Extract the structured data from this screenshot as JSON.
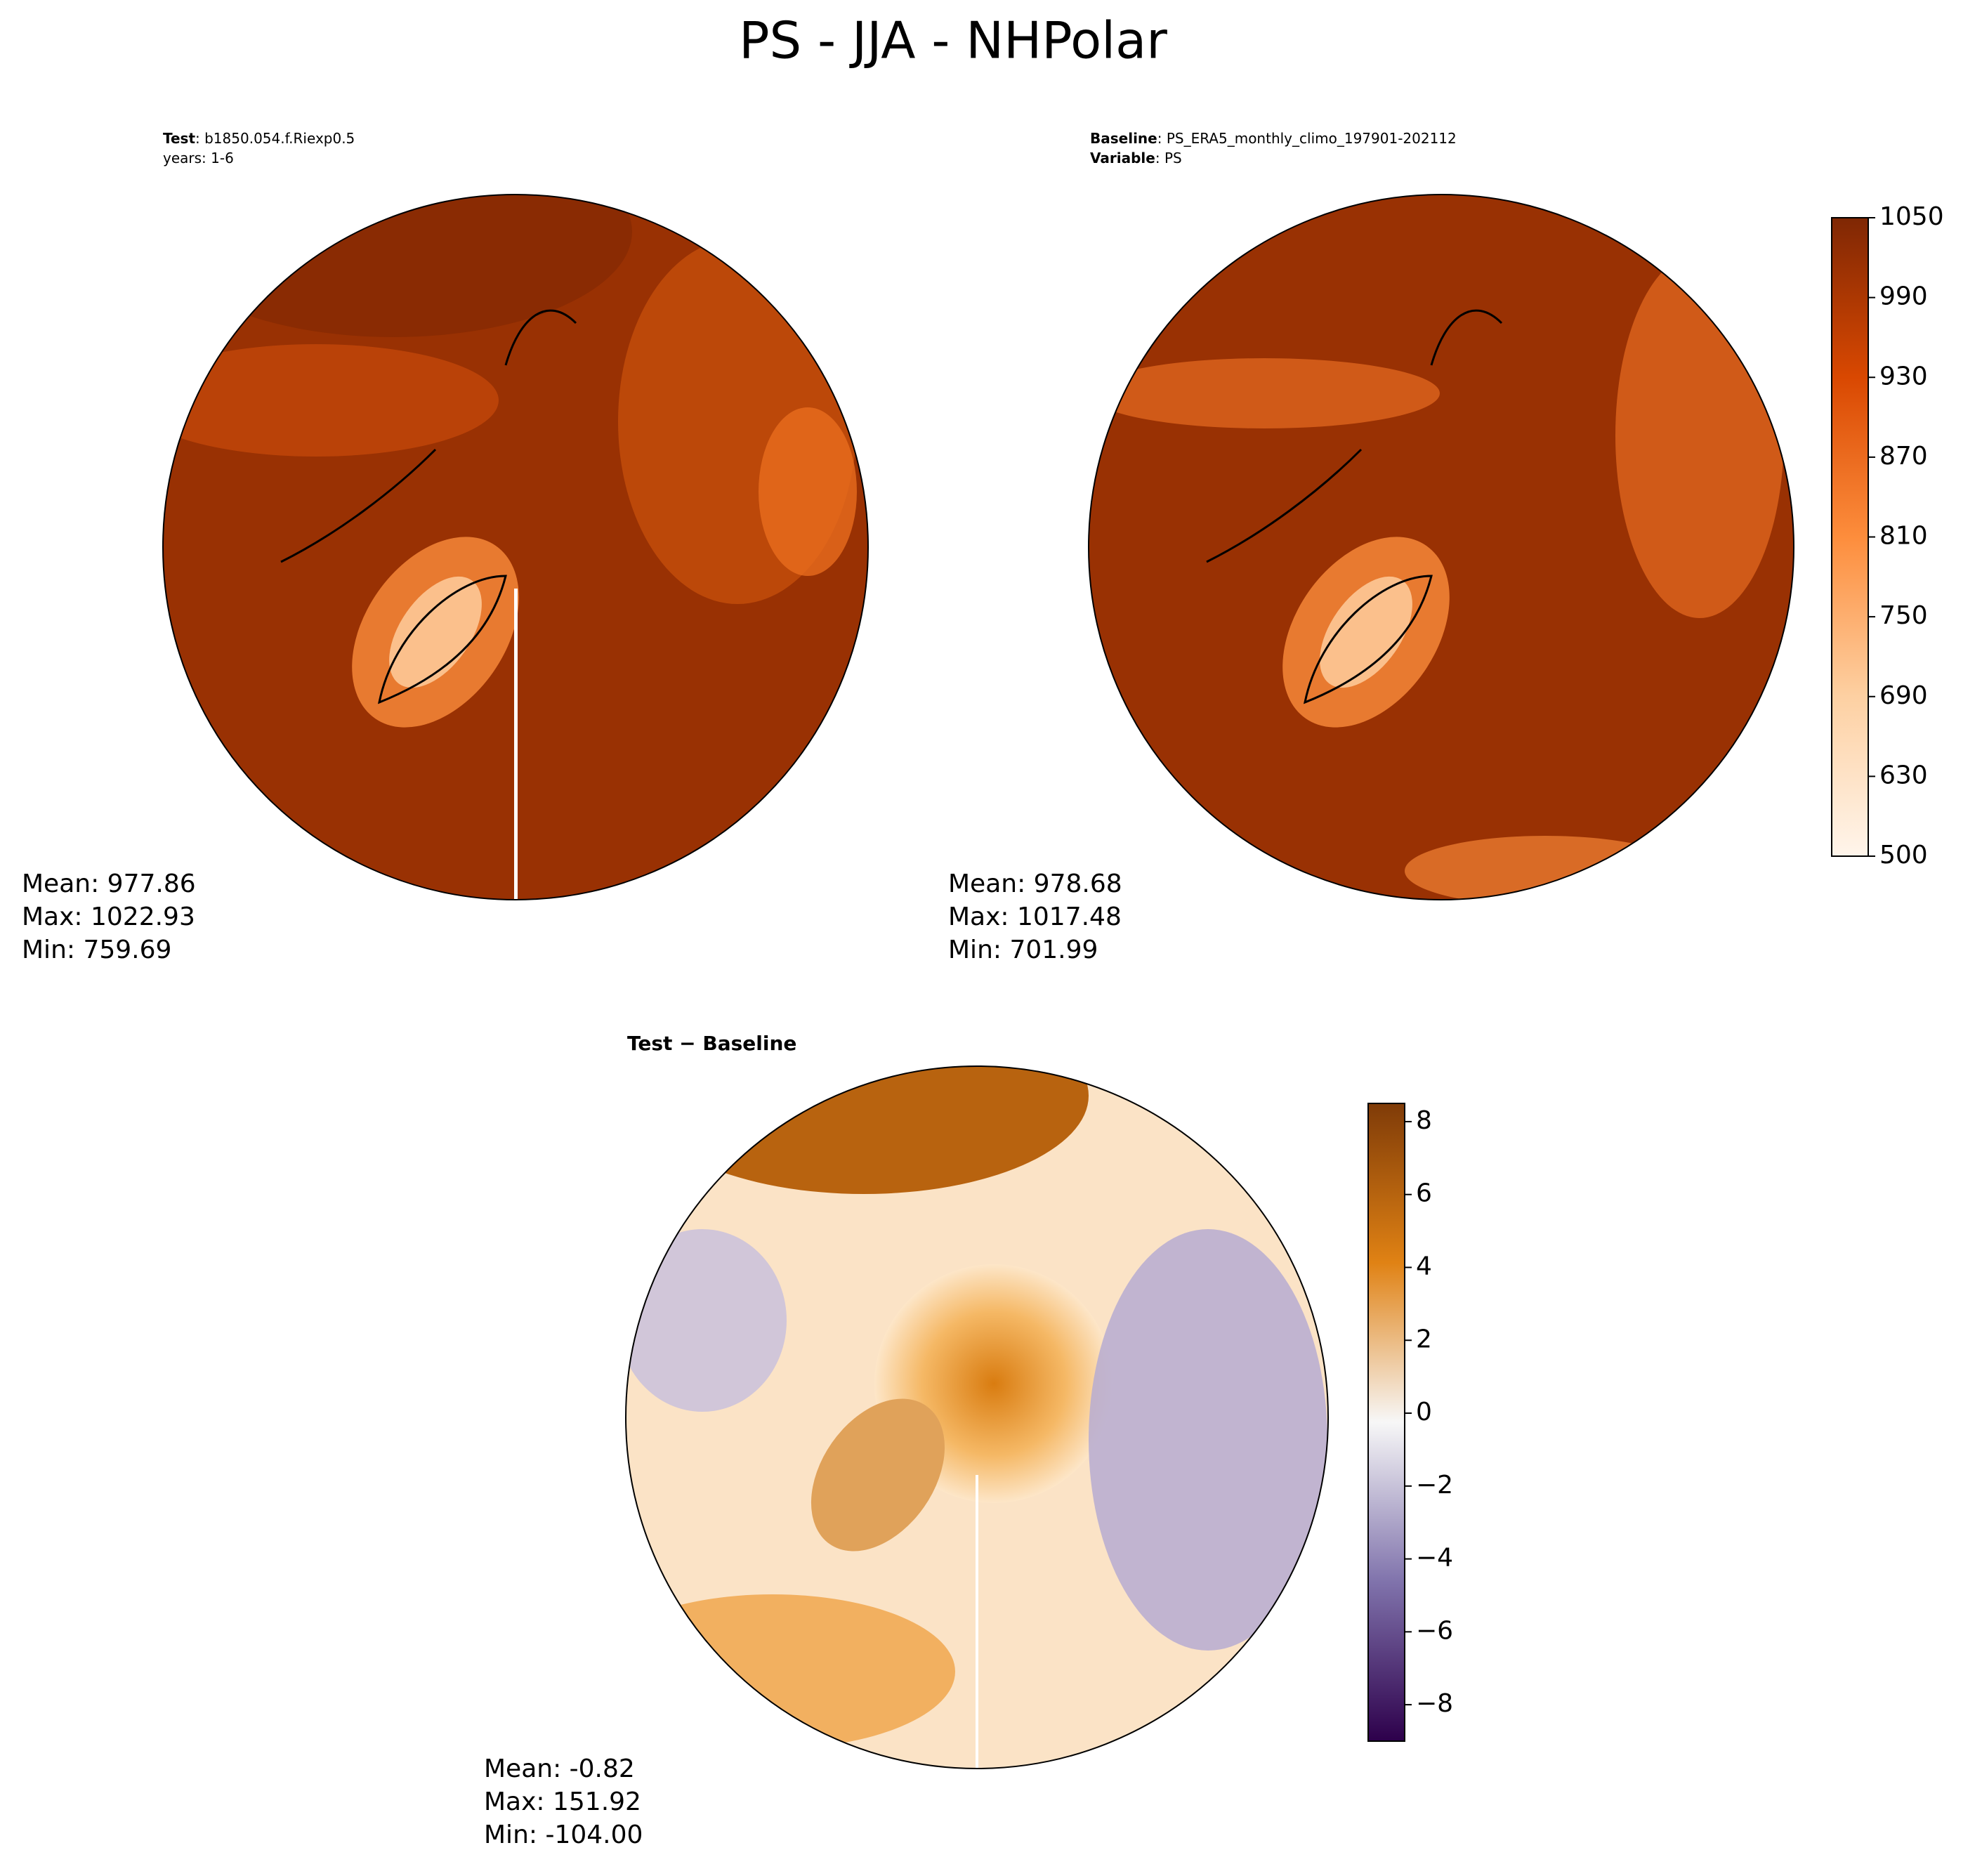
{
  "title": "PS - JJA - NHPolar",
  "panels": [
    {
      "header": [
        {
          "bold": "Test",
          "text": ": b1850.054.f.Riexp0.5"
        },
        {
          "text": "years: 1-6"
        }
      ],
      "stats": [
        "Mean: 977.86",
        "Max: 1022.93",
        "Min: 759.69"
      ]
    },
    {
      "header": [
        {
          "bold": "Baseline",
          "text": ": PS_ERA5_monthly_climo_197901-202112"
        },
        {
          "bold": "Variable",
          "text": ": PS"
        }
      ],
      "stats": [
        "Mean: 978.68",
        "Max: 1017.48",
        "Min: 701.99"
      ]
    },
    {
      "header": [
        {
          "bold": "Test − Baseline"
        }
      ],
      "stats": [
        "Mean: -0.82",
        "Max: 151.92",
        "Min: -104.00"
      ]
    }
  ],
  "colorbars": [
    {
      "ticks": [
        500,
        630,
        690,
        750,
        810,
        870,
        930,
        990,
        1050
      ],
      "colors": [
        "#fff5eb",
        "#fdd0a2",
        "#fd8d3c",
        "#d94801",
        "#7f2704"
      ]
    },
    {
      "lim": [
        -9,
        8.5
      ],
      "ticks": [
        {
          "value": -8,
          "label": "−8"
        },
        {
          "value": -6,
          "label": "−6"
        },
        {
          "value": -4,
          "label": "−4"
        },
        {
          "value": -2,
          "label": "−2"
        },
        0,
        2,
        4,
        6,
        8
      ],
      "colors": [
        "#2d004b",
        "#8073ac",
        "#f7f7f7",
        "#e08214",
        "#7f3b08"
      ]
    }
  ]
}
